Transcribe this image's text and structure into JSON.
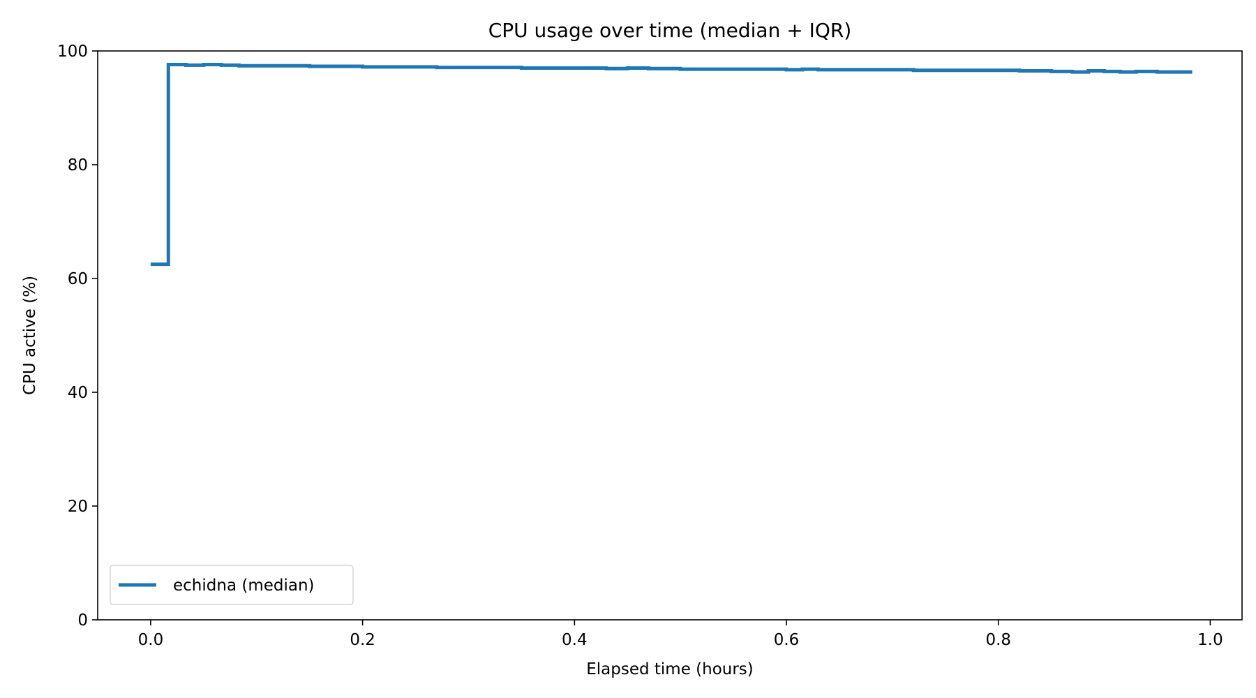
{
  "chart_data": {
    "type": "line",
    "title": "CPU usage over time (median + IQR)",
    "xlabel": "Elapsed time (hours)",
    "ylabel": "CPU active (%)",
    "xlim": [
      -0.05,
      1.03
    ],
    "ylim": [
      0,
      100
    ],
    "xticks": [
      0.0,
      0.2,
      0.4,
      0.6,
      0.8,
      1.0
    ],
    "xtick_labels": [
      "0.0",
      "0.2",
      "0.4",
      "0.6",
      "0.8",
      "1.0"
    ],
    "yticks": [
      0,
      20,
      40,
      60,
      80,
      100
    ],
    "ytick_labels": [
      "0",
      "20",
      "40",
      "60",
      "80",
      "100"
    ],
    "grid": false,
    "legend_position": "lower-left",
    "step": "post",
    "series": [
      {
        "name": "echidna (median)",
        "color": "#1f77b4",
        "x": [
          0.0,
          0.0167,
          0.0333,
          0.05,
          0.0667,
          0.0833,
          0.15,
          0.2,
          0.27,
          0.35,
          0.43,
          0.45,
          0.47,
          0.5,
          0.6,
          0.615,
          0.63,
          0.72,
          0.82,
          0.85,
          0.87,
          0.885,
          0.9,
          0.915,
          0.93,
          0.95,
          0.983
        ],
        "values": [
          62.5,
          97.6,
          97.5,
          97.6,
          97.5,
          97.4,
          97.3,
          97.2,
          97.1,
          97.0,
          96.9,
          97.0,
          96.9,
          96.8,
          96.7,
          96.8,
          96.7,
          96.6,
          96.5,
          96.4,
          96.3,
          96.5,
          96.4,
          96.3,
          96.4,
          96.3,
          96.3
        ]
      }
    ]
  }
}
